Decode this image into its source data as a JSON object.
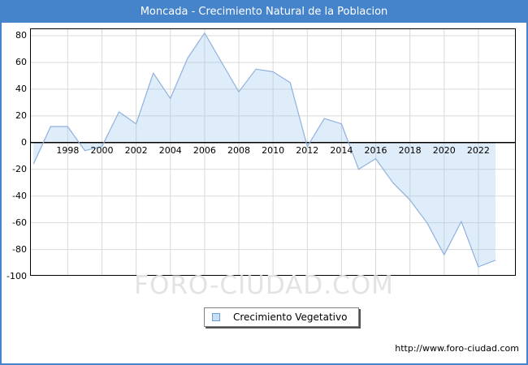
{
  "header": {
    "title": "Moncada - Crecimiento Natural de la Poblacion"
  },
  "watermark": {
    "text": "FORO-CIUDAD.COM"
  },
  "legend": {
    "label": "Crecimiento Vegetativo"
  },
  "footer": {
    "url": "http://www.foro-ciudad.com"
  },
  "colors": {
    "frame_blue": "#4583cb",
    "title_text": "#ffffff",
    "grid": "#d9d9d9",
    "axis_black": "#000000",
    "line": "#8fb2dd",
    "fill": "rgba(157,196,235,0.32)",
    "legend_swatch_fill": "#c9def2",
    "legend_swatch_border": "#6f9fd8",
    "watermark_gray": "#e3e3e3"
  },
  "chart_data": {
    "type": "area",
    "title": "Moncada - Crecimiento Natural de la Poblacion",
    "xlabel": "",
    "ylabel": "",
    "grid": true,
    "legend_position": "bottom-center",
    "xlim": [
      1996,
      2023
    ],
    "ylim": [
      -100,
      80
    ],
    "x_ticks": [
      1998,
      2000,
      2002,
      2004,
      2006,
      2008,
      2010,
      2012,
      2014,
      2016,
      2018,
      2020,
      2022
    ],
    "y_ticks": [
      80,
      60,
      40,
      20,
      0,
      -20,
      -40,
      -60,
      -80,
      -100
    ],
    "y_gridlines": [
      80,
      60,
      40,
      20,
      -20,
      -40,
      -60,
      -80
    ],
    "series": [
      {
        "name": "Crecimiento Vegetativo",
        "x": [
          1996,
          1997,
          1998,
          1999,
          2000,
          2001,
          2002,
          2003,
          2004,
          2005,
          2006,
          2007,
          2008,
          2009,
          2010,
          2011,
          2012,
          2013,
          2014,
          2015,
          2016,
          2017,
          2018,
          2019,
          2020,
          2021,
          2022,
          2023
        ],
        "values": [
          -16,
          12,
          12,
          -6,
          -3,
          23,
          14,
          52,
          33,
          63,
          82,
          60,
          38,
          55,
          53,
          45,
          -3,
          18,
          14,
          -20,
          -12,
          -30,
          -43,
          -60,
          -84,
          -59,
          -93,
          -88
        ]
      }
    ]
  }
}
